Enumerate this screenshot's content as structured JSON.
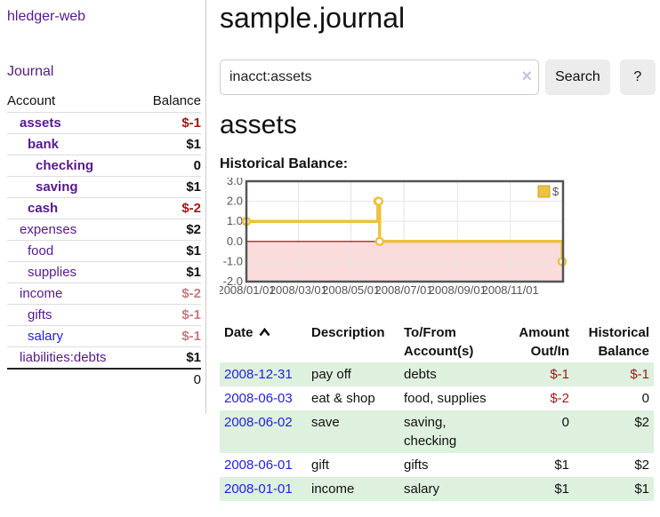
{
  "colors": {
    "purple": "#551a8b",
    "blue": "#2222dd",
    "negative-strong": "#a01818",
    "negative-soft": "#c17d7d",
    "row-green": "#def0de",
    "chart-line": "#edc240"
  },
  "app": {
    "title": "hledger-web"
  },
  "sidebar": {
    "journal_link": "Journal",
    "accounts_table": {
      "headers": [
        "Account",
        "Balance"
      ],
      "rows": [
        {
          "account": "assets",
          "balance": "$-1",
          "indent": 1,
          "bold": true,
          "balance_class": "neg",
          "link_class": ""
        },
        {
          "account": "bank",
          "balance": "$1",
          "indent": 2,
          "bold": true,
          "balance_class": "",
          "link_class": ""
        },
        {
          "account": "checking",
          "balance": "0",
          "indent": 3,
          "bold": true,
          "balance_class": "",
          "link_class": ""
        },
        {
          "account": "saving",
          "balance": "$1",
          "indent": 3,
          "bold": true,
          "balance_class": "",
          "link_class": ""
        },
        {
          "account": "cash",
          "balance": "$-2",
          "indent": 2,
          "bold": true,
          "balance_class": "neg",
          "link_class": ""
        },
        {
          "account": "expenses",
          "balance": "$2",
          "indent": 1,
          "bold": false,
          "balance_class": "",
          "link_class": ""
        },
        {
          "account": "food",
          "balance": "$1",
          "indent": 2,
          "bold": false,
          "balance_class": "",
          "link_class": ""
        },
        {
          "account": "supplies",
          "balance": "$1",
          "indent": 2,
          "bold": false,
          "balance_class": "",
          "link_class": ""
        },
        {
          "account": "income",
          "balance": "$-2",
          "indent": 1,
          "bold": false,
          "balance_class": "soft",
          "link_class": ""
        },
        {
          "account": "gifts",
          "balance": "$-1",
          "indent": 2,
          "bold": false,
          "balance_class": "soft",
          "link_class": ""
        },
        {
          "account": "salary",
          "balance": "$-1",
          "indent": 2,
          "bold": false,
          "balance_class": "soft",
          "link_class": "blue"
        },
        {
          "account": "liabilities:debts",
          "balance": "$1",
          "indent": 1,
          "bold": false,
          "balance_class": "",
          "link_class": ""
        }
      ],
      "total": "0"
    }
  },
  "header": {
    "title": "sample.journal"
  },
  "search": {
    "value": "inacct:assets",
    "clear_icon": "×",
    "search_label": "Search",
    "help_label": "?"
  },
  "account_page": {
    "heading": "assets",
    "chart_label": "Historical Balance:"
  },
  "chart_data": {
    "type": "line",
    "style": "step",
    "title": "Historical Balance",
    "xlim": [
      "2008-01-01",
      "2009-01-01"
    ],
    "ylim": [
      -2,
      3
    ],
    "y_ticks": [
      -2,
      -1,
      0,
      1,
      2,
      3
    ],
    "x_ticks": [
      "2008/01/01",
      "2008/03/01",
      "2008/05/01",
      "2008/07/01",
      "2008/09/01",
      "2008/11/01"
    ],
    "grid": true,
    "legend_position": "top-right",
    "negative_region_color": "#fadcdc",
    "zero_line_color": "#990000",
    "grid_color": "#e5e5e5",
    "border_color": "#545454",
    "series": [
      {
        "name": "$",
        "color": "#edc240",
        "points": [
          [
            "2008-01-01",
            1
          ],
          [
            "2008-06-01",
            2
          ],
          [
            "2008-06-02",
            2
          ],
          [
            "2008-06-03",
            0
          ],
          [
            "2008-12-31",
            -1
          ]
        ]
      }
    ]
  },
  "register_table": {
    "columns": [
      {
        "label": "Date",
        "sort": "asc"
      },
      {
        "label": "Description"
      },
      {
        "label": "To/From Account(s)"
      },
      {
        "label": "Amount Out/In"
      },
      {
        "label": "Historical Balance"
      }
    ],
    "rows": [
      {
        "date": "2008-12-31",
        "description": "pay off",
        "accounts": "debts",
        "amount": "$-1",
        "amount_class": "neg",
        "balance": "$-1",
        "balance_class": "neg"
      },
      {
        "date": "2008-06-03",
        "description": "eat & shop",
        "accounts": "food, supplies",
        "amount": "$-2",
        "amount_class": "neg",
        "balance": "0",
        "balance_class": ""
      },
      {
        "date": "2008-06-02",
        "description": "save",
        "accounts": "saving, checking",
        "amount": "0",
        "amount_class": "",
        "balance": "$2",
        "balance_class": ""
      },
      {
        "date": "2008-06-01",
        "description": "gift",
        "accounts": "gifts",
        "amount": "$1",
        "amount_class": "",
        "balance": "$2",
        "balance_class": ""
      },
      {
        "date": "2008-01-01",
        "description": "income",
        "accounts": "salary",
        "amount": "$1",
        "amount_class": "",
        "balance": "$1",
        "balance_class": ""
      }
    ]
  }
}
